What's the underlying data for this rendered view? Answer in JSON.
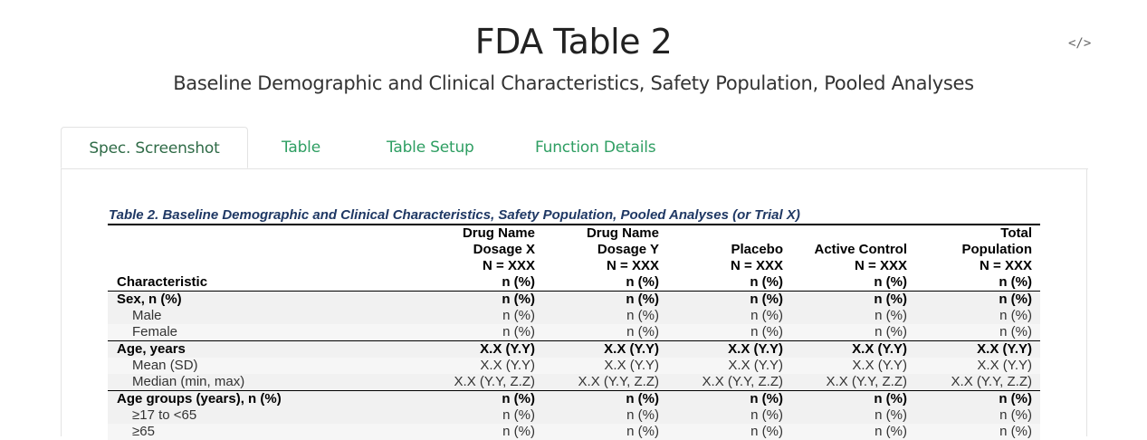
{
  "header": {
    "title": "FDA Table 2",
    "subtitle": "Baseline Demographic and Clinical Characteristics, Safety Population, Pooled Analyses",
    "code_toggle": "</>"
  },
  "tabs": [
    {
      "label": "Spec. Screenshot",
      "active": true
    },
    {
      "label": "Table",
      "active": false
    },
    {
      "label": "Table Setup",
      "active": false
    },
    {
      "label": "Function Details",
      "active": false
    }
  ],
  "spec": {
    "caption": "Table 2. Baseline Demographic and Clinical Characteristics, Safety Population, Pooled Analyses (or Trial X)",
    "header_rows": [
      [
        "",
        "Drug Name",
        "Drug Name",
        "",
        "",
        "Total"
      ],
      [
        "",
        "Dosage X",
        "Dosage Y",
        "Placebo",
        "Active Control",
        "Population"
      ],
      [
        "",
        "N = XXX",
        "N = XXX",
        "N = XXX",
        "N = XXX",
        "N = XXX"
      ],
      [
        "Characteristic",
        "n (%)",
        "n (%)",
        "n (%)",
        "n (%)",
        "n (%)"
      ]
    ],
    "rows": [
      {
        "type": "group",
        "cells": [
          "Sex, n (%)",
          "n (%)",
          "n (%)",
          "n (%)",
          "n (%)",
          "n (%)"
        ]
      },
      {
        "type": "sub",
        "cells": [
          "Male",
          "n (%)",
          "n (%)",
          "n (%)",
          "n (%)",
          "n (%)"
        ]
      },
      {
        "type": "sub",
        "cells": [
          "Female",
          "n (%)",
          "n (%)",
          "n (%)",
          "n (%)",
          "n (%)"
        ]
      },
      {
        "type": "group",
        "cells": [
          "Age, years",
          "X.X (Y.Y)",
          "X.X (Y.Y)",
          "X.X (Y.Y)",
          "X.X (Y.Y)",
          "X.X (Y.Y)"
        ]
      },
      {
        "type": "sub",
        "cells": [
          "Mean (SD)",
          "X.X (Y.Y)",
          "X.X (Y.Y)",
          "X.X (Y.Y)",
          "X.X (Y.Y)",
          "X.X (Y.Y)"
        ]
      },
      {
        "type": "sub",
        "cells": [
          "Median (min, max)",
          "X.X (Y.Y, Z.Z)",
          "X.X (Y.Y, Z.Z)",
          "X.X (Y.Y, Z.Z)",
          "X.X (Y.Y, Z.Z)",
          "X.X (Y.Y, Z.Z)"
        ]
      },
      {
        "type": "group",
        "cells": [
          "Age groups (years), n (%)",
          "n (%)",
          "n (%)",
          "n (%)",
          "n (%)",
          "n (%)"
        ]
      },
      {
        "type": "sub",
        "cells": [
          "≥17 to <65",
          "n (%)",
          "n (%)",
          "n (%)",
          "n (%)",
          "n (%)"
        ]
      },
      {
        "type": "sub",
        "cells": [
          "≥65",
          "n (%)",
          "n (%)",
          "n (%)",
          "n (%)",
          "n (%)"
        ]
      }
    ]
  }
}
